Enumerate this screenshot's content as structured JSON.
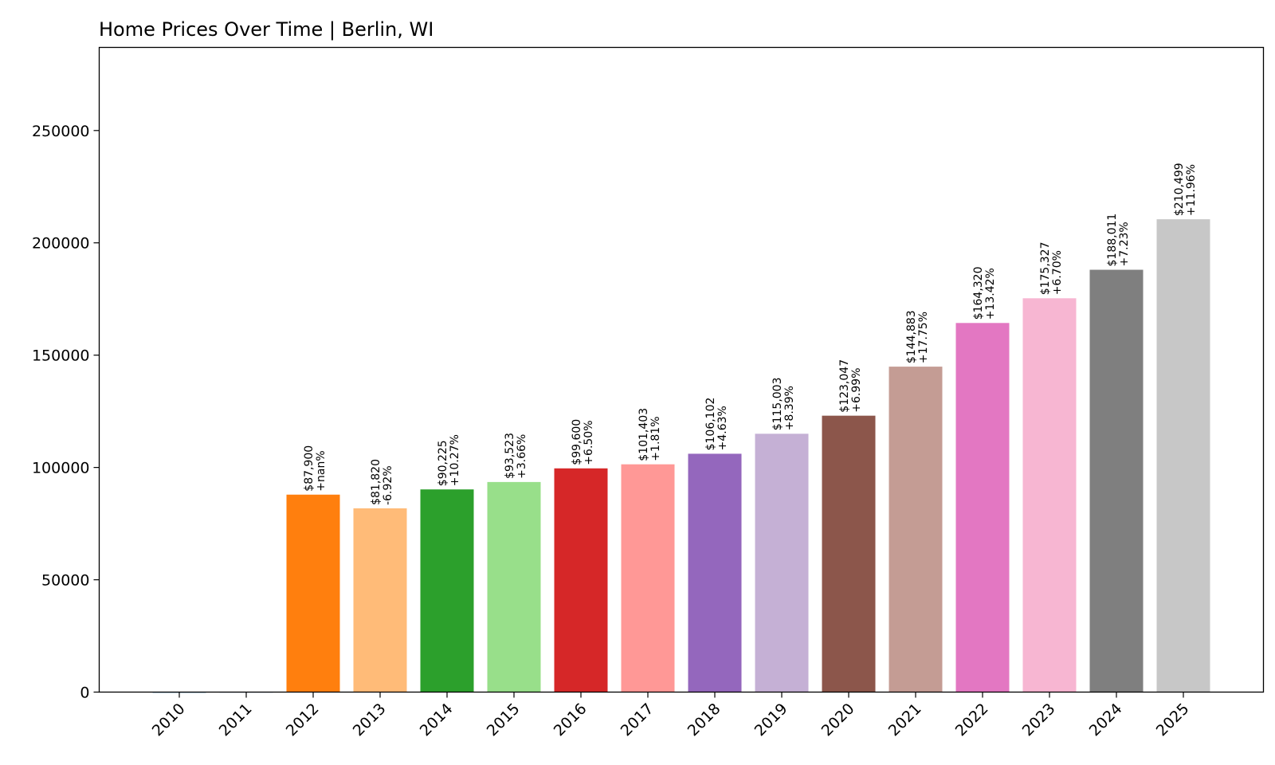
{
  "chart_data": {
    "type": "bar",
    "title": "Home Prices Over Time | Berlin, WI",
    "xlabel": "",
    "ylabel": "",
    "ylim": [
      0,
      287000
    ],
    "yticks": [
      0,
      50000,
      100000,
      150000,
      200000,
      250000
    ],
    "ytick_labels": [
      "0",
      "50000",
      "100000",
      "150000",
      "200000",
      "250000"
    ],
    "categories": [
      "2010",
      "2011",
      "2012",
      "2013",
      "2014",
      "2015",
      "2016",
      "2017",
      "2018",
      "2019",
      "2020",
      "2021",
      "2022",
      "2023",
      "2024",
      "2025"
    ],
    "values": [
      0,
      0,
      87900,
      81820,
      90225,
      93523,
      99600,
      101403,
      106102,
      115003,
      123047,
      144883,
      164320,
      175327,
      188011,
      210499
    ],
    "value_labels": [
      "",
      "",
      "$87,900",
      "$81,820",
      "$90,225",
      "$93,523",
      "$99,600",
      "$101,403",
      "$106,102",
      "$115,003",
      "$123,047",
      "$144,883",
      "$164,320",
      "$175,327",
      "$188,011",
      "$210,499"
    ],
    "change_labels": [
      "",
      "",
      "+nan%",
      "-6.92%",
      "+10.27%",
      "+3.66%",
      "+6.50%",
      "+1.81%",
      "+4.63%",
      "+8.39%",
      "+6.99%",
      "+17.75%",
      "+13.42%",
      "+6.70%",
      "+7.23%",
      "+11.96%"
    ],
    "colors": [
      "#1f77b4",
      "#aec7e8",
      "#ff7f0e",
      "#ffbb78",
      "#2ca02c",
      "#98df8a",
      "#d62728",
      "#ff9896",
      "#9467bd",
      "#c5b0d5",
      "#8c564b",
      "#c49c94",
      "#e377c2",
      "#f7b6d2",
      "#7f7f7f",
      "#c7c7c7"
    ],
    "grid": false,
    "legend": "none"
  }
}
